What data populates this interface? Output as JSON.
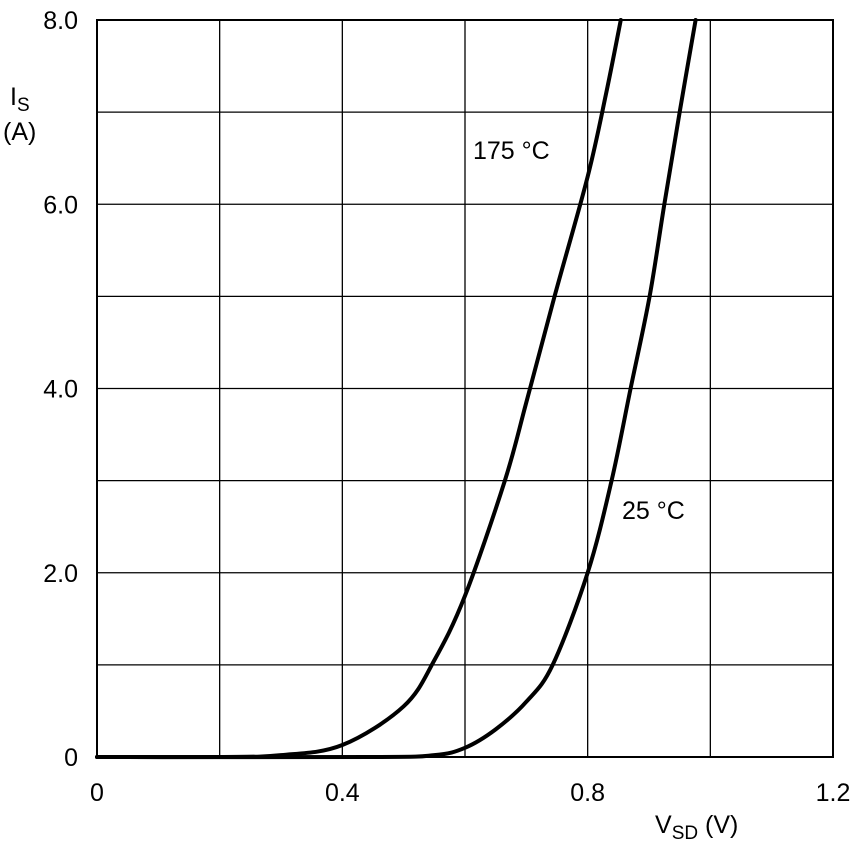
{
  "chart_data": {
    "type": "line",
    "title": "",
    "xlabel": "V",
    "xlabel_sub": "SD",
    "xlabel_unit": " (V)",
    "ylabel": "I",
    "ylabel_sub": "S",
    "ylabel_unit": "(A)",
    "xlim": [
      0,
      1.2
    ],
    "ylim": [
      0,
      8.0
    ],
    "grid": true,
    "x_grid_step": 0.2,
    "y_grid_step": 1.0,
    "x_ticks": [
      {
        "v": 0,
        "label": "0"
      },
      {
        "v": 0.4,
        "label": "0.4"
      },
      {
        "v": 0.8,
        "label": "0.8"
      },
      {
        "v": 1.2,
        "label": "1.2"
      }
    ],
    "y_ticks": [
      {
        "v": 0,
        "label": "0"
      },
      {
        "v": 2,
        "label": "2.0"
      },
      {
        "v": 4,
        "label": "4.0"
      },
      {
        "v": 6,
        "label": "6.0"
      },
      {
        "v": 8,
        "label": "8.0"
      }
    ],
    "series": [
      {
        "name": "175 °C",
        "color": "#000000",
        "x": [
          0,
          0.2,
          0.3,
          0.4,
          0.5,
          0.55,
          0.6,
          0.665,
          0.7,
          0.746,
          0.8,
          0.83,
          0.854
        ],
        "y": [
          0,
          0,
          0.02,
          0.13,
          0.55,
          1.05,
          1.75,
          3.0,
          3.85,
          5.0,
          6.3,
          7.2,
          8.0
        ]
      },
      {
        "name": "25 °C",
        "color": "#000000",
        "x": [
          0,
          0.45,
          0.55,
          0.6,
          0.65,
          0.7,
          0.743,
          0.8,
          0.839,
          0.87,
          0.901,
          0.925,
          0.95,
          0.976
        ],
        "y": [
          0,
          0,
          0.02,
          0.1,
          0.3,
          0.6,
          1.0,
          2.0,
          3.0,
          4.0,
          5.0,
          6.0,
          7.0,
          8.0
        ]
      }
    ]
  }
}
